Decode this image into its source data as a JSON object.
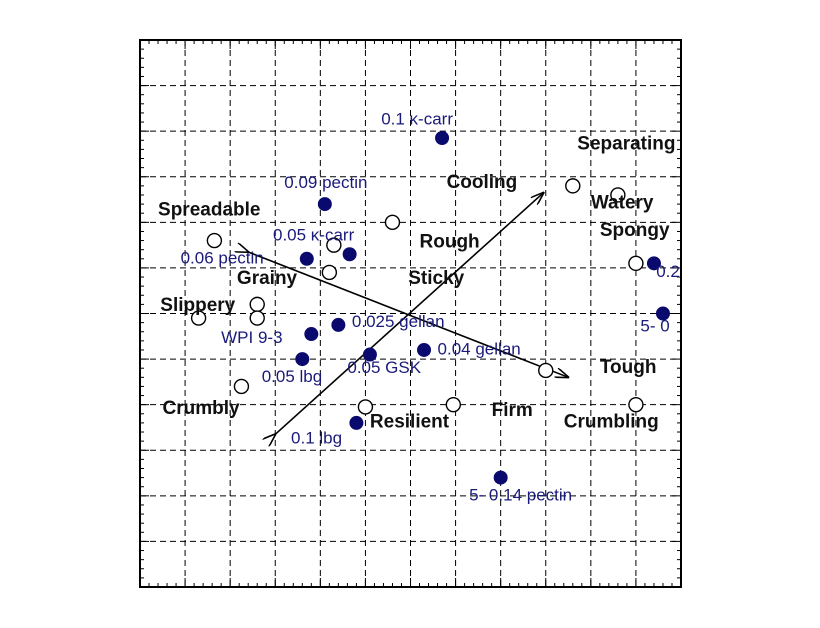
{
  "chart_data": {
    "type": "scatter",
    "title": "",
    "xlabel": "",
    "ylabel": "",
    "xlim": [
      0,
      12
    ],
    "ylim": [
      0,
      12
    ],
    "grid": true,
    "colors": {
      "frame": "#000000",
      "grid": "#000000",
      "attribute_marker": "#000000",
      "sample_marker": "#0a0a6e",
      "sample_text": "#1a1a7a",
      "attribute_text": "#111111"
    },
    "series": [
      {
        "marker": "open-circle",
        "points": [
          {
            "x": 1.65,
            "y": 7.6,
            "label": "Spreadable"
          },
          {
            "x": 2.6,
            "y": 6.2,
            "label": "Grainy"
          },
          {
            "x": 2.6,
            "y": 5.9,
            "label": "Slippery"
          },
          {
            "x": 1.3,
            "y": 5.9,
            "label": "Slippery"
          },
          {
            "x": 2.25,
            "y": 4.4,
            "label": "Crumbly"
          },
          {
            "x": 5.6,
            "y": 8.0,
            "label": "Cooling"
          },
          {
            "x": 4.3,
            "y": 7.5,
            "label": "Rough"
          },
          {
            "x": 4.2,
            "y": 6.9,
            "label": "Sticky"
          },
          {
            "x": 6.95,
            "y": 4.0,
            "label": "Firm"
          },
          {
            "x": 5.0,
            "y": 3.95,
            "label": "Resilient"
          },
          {
            "x": 9.6,
            "y": 8.8,
            "label": "Separating"
          },
          {
            "x": 10.6,
            "y": 8.6,
            "label": "Watery"
          },
          {
            "x": 11.0,
            "y": 7.1,
            "label": "Spongy"
          },
          {
            "x": 9.0,
            "y": 4.75,
            "label": "Tough"
          },
          {
            "x": 11.0,
            "y": 4.0,
            "label": "Crumbling"
          }
        ]
      },
      {
        "marker": "filled-circle",
        "points": [
          {
            "x": 6.7,
            "y": 9.85,
            "label": "0.1 κ-carr"
          },
          {
            "x": 4.1,
            "y": 8.4,
            "label": "0.09 pectin"
          },
          {
            "x": 4.65,
            "y": 7.3,
            "label": "0.05 κ-carr"
          },
          {
            "x": 3.7,
            "y": 7.2,
            "label": "0.06 pectin"
          },
          {
            "x": 4.4,
            "y": 5.75,
            "label": "0.025 gellan"
          },
          {
            "x": 3.8,
            "y": 5.55,
            "label": "WPI 9-3"
          },
          {
            "x": 3.6,
            "y": 5.0,
            "label": "0.05 lbg"
          },
          {
            "x": 5.1,
            "y": 5.1,
            "label": "0.05 GSK"
          },
          {
            "x": 6.3,
            "y": 5.2,
            "label": "0.04 gellan"
          },
          {
            "x": 4.8,
            "y": 3.6,
            "label": "0.1 lbg"
          },
          {
            "x": 8.0,
            "y": 2.4,
            "label": "5- 0.14 pectin"
          },
          {
            "x": 11.4,
            "y": 7.1,
            "label": "0.2"
          },
          {
            "x": 11.6,
            "y": 6.0,
            "label": "5- 0"
          }
        ]
      }
    ],
    "arrows": [
      {
        "from": [
          2.4,
          7.35
        ],
        "to": [
          9.5,
          4.6
        ]
      },
      {
        "from": [
          3.0,
          3.35
        ],
        "to": [
          8.95,
          8.65
        ]
      }
    ],
    "annotations": [
      {
        "text": "Spreadable",
        "x": 0.4,
        "y": 8.15,
        "style": "attribute"
      },
      {
        "text": "Grainy",
        "x": 2.15,
        "y": 6.65,
        "style": "attribute"
      },
      {
        "text": "Slippery",
        "x": 0.45,
        "y": 6.05,
        "style": "attribute"
      },
      {
        "text": "Crumbly",
        "x": 0.5,
        "y": 3.8,
        "style": "attribute"
      },
      {
        "text": "Cooling",
        "x": 6.8,
        "y": 8.75,
        "style": "attribute"
      },
      {
        "text": "Rough",
        "x": 6.2,
        "y": 7.45,
        "style": "attribute"
      },
      {
        "text": "Sticky",
        "x": 5.95,
        "y": 6.65,
        "style": "attribute"
      },
      {
        "text": "Firm",
        "x": 7.8,
        "y": 3.75,
        "style": "attribute"
      },
      {
        "text": "Resilient",
        "x": 5.1,
        "y": 3.5,
        "style": "attribute"
      },
      {
        "text": "Separating",
        "x": 9.7,
        "y": 9.6,
        "style": "attribute"
      },
      {
        "text": "Watery",
        "x": 10.0,
        "y": 8.3,
        "style": "attribute"
      },
      {
        "text": "Spongy",
        "x": 10.2,
        "y": 7.7,
        "style": "attribute"
      },
      {
        "text": "Tough",
        "x": 10.2,
        "y": 4.7,
        "style": "attribute"
      },
      {
        "text": "Crumbling",
        "x": 9.4,
        "y": 3.5,
        "style": "attribute"
      },
      {
        "text": "0.1 κ-carr",
        "x": 5.35,
        "y": 10.15,
        "style": "sample"
      },
      {
        "text": "0.09 pectin",
        "x": 3.2,
        "y": 8.75,
        "style": "sample"
      },
      {
        "text": "0.05 κ-carr",
        "x": 2.95,
        "y": 7.6,
        "style": "sample"
      },
      {
        "text": "0.06 pectin",
        "x": 0.9,
        "y": 7.1,
        "style": "sample"
      },
      {
        "text": "0.025 gellan",
        "x": 4.7,
        "y": 5.7,
        "style": "sample"
      },
      {
        "text": "WPI 9-3",
        "x": 1.8,
        "y": 5.35,
        "style": "sample"
      },
      {
        "text": "0.05 lbg",
        "x": 2.7,
        "y": 4.5,
        "style": "sample"
      },
      {
        "text": "0.05 GSK",
        "x": 4.6,
        "y": 4.7,
        "style": "sample"
      },
      {
        "text": "0.04 gellan",
        "x": 6.6,
        "y": 5.1,
        "style": "sample"
      },
      {
        "text": "0.1 lbg",
        "x": 3.35,
        "y": 3.15,
        "style": "sample"
      },
      {
        "text": "5- 0.14 pectin",
        "x": 7.3,
        "y": 1.9,
        "style": "sample"
      },
      {
        "text": "0.2",
        "x": 11.45,
        "y": 6.8,
        "style": "sample"
      },
      {
        "text": "5- 0",
        "x": 11.1,
        "y": 5.6,
        "style": "sample"
      }
    ]
  }
}
